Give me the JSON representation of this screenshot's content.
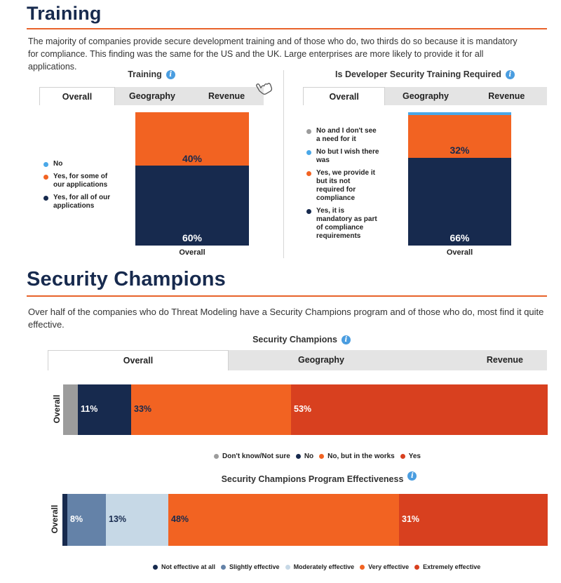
{
  "training_section": {
    "heading": "Training",
    "paragraph": "The majority of companies provide secure development training and of those who do, two thirds do so because it is mandatory for compliance. This finding was the same for the US and the UK. Large enterprises are more likely to provide it for all applications."
  },
  "champions_section": {
    "heading": "Security Champions",
    "paragraph": "Over half of the companies who do Threat Modeling have a Security Champions program and of those who do, most find it quite effective."
  },
  "info_glyph": "i",
  "colors": {
    "navy": "#172a4e",
    "orange": "#f26322",
    "red_orange": "#d8401f",
    "grey": "#9c9c9c",
    "light_blue": "#4aa8e8",
    "slate_blue": "#6482a8",
    "pale_blue": "#c6d8e6"
  },
  "chart_data": [
    {
      "type": "bar",
      "title": "Training",
      "tabs": [
        "Overall",
        "Geography",
        "Revenue"
      ],
      "active_tab": "Overall",
      "categories": [
        "Overall"
      ],
      "stacked": true,
      "series": [
        {
          "name": "No",
          "values": [
            0
          ],
          "color": "#4aa8e8"
        },
        {
          "name": "Yes, for some of our applications",
          "values": [
            40
          ],
          "color": "#f26322"
        },
        {
          "name": "Yes, for all of our applications",
          "values": [
            60
          ],
          "color": "#172a4e"
        }
      ],
      "value_labels": [
        "40%",
        "60%"
      ],
      "legend_items": [
        "No",
        "Yes, for some of our applications",
        "Yes, for all of our applications"
      ],
      "legend_position": "left"
    },
    {
      "type": "bar",
      "title": "Is Developer Security Training Required",
      "tabs": [
        "Overall",
        "Geography",
        "Revenue"
      ],
      "active_tab": "Overall",
      "categories": [
        "Overall"
      ],
      "stacked": true,
      "series": [
        {
          "name": "No and I don't see a need for it",
          "values": [
            0
          ],
          "color": "#9c9c9c"
        },
        {
          "name": "No but I wish there was",
          "values": [
            2
          ],
          "color": "#4aa8e8"
        },
        {
          "name": "Yes, we provide it but its not required for compliance",
          "values": [
            32
          ],
          "color": "#f26322"
        },
        {
          "name": "Yes, it is mandatory as part of compliance requirements",
          "values": [
            66
          ],
          "color": "#172a4e"
        }
      ],
      "value_labels": [
        "32%",
        "66%"
      ],
      "legend_items": [
        "No and I don't see a need for it",
        "No but I wish there was",
        "Yes, we provide it but its not required for compliance",
        "Yes, it is mandatory as part of compliance requirements"
      ],
      "legend_position": "left"
    },
    {
      "type": "bar",
      "orientation": "horizontal",
      "title": "Security Champions",
      "tabs": [
        "Overall",
        "Geography",
        "Revenue"
      ],
      "active_tab": "Overall",
      "categories": [
        "Overall"
      ],
      "stacked": true,
      "series": [
        {
          "name": "Don't know/Not sure",
          "values": [
            3
          ],
          "color": "#9c9c9c"
        },
        {
          "name": "No",
          "values": [
            11
          ],
          "color": "#172a4e"
        },
        {
          "name": "No, but in the works",
          "values": [
            33
          ],
          "color": "#f26322"
        },
        {
          "name": "Yes",
          "values": [
            53
          ],
          "color": "#d8401f"
        }
      ],
      "value_labels": [
        "",
        "11%",
        "33%",
        "53%"
      ],
      "legend_position": "bottom"
    },
    {
      "type": "bar",
      "orientation": "horizontal",
      "title": "Security Champions Program Effectiveness",
      "categories": [
        "Overall"
      ],
      "stacked": true,
      "series": [
        {
          "name": "Not effective at all",
          "values": [
            1
          ],
          "color": "#172a4e"
        },
        {
          "name": "Slightly effective",
          "values": [
            8
          ],
          "color": "#6482a8"
        },
        {
          "name": "Moderately effective",
          "values": [
            13
          ],
          "color": "#c6d8e6"
        },
        {
          "name": "Very effective",
          "values": [
            48
          ],
          "color": "#f26322"
        },
        {
          "name": "Extremely effective",
          "values": [
            31
          ],
          "color": "#d8401f"
        }
      ],
      "value_labels": [
        "",
        "8%",
        "13%",
        "48%",
        "31%"
      ],
      "legend_position": "bottom"
    }
  ]
}
